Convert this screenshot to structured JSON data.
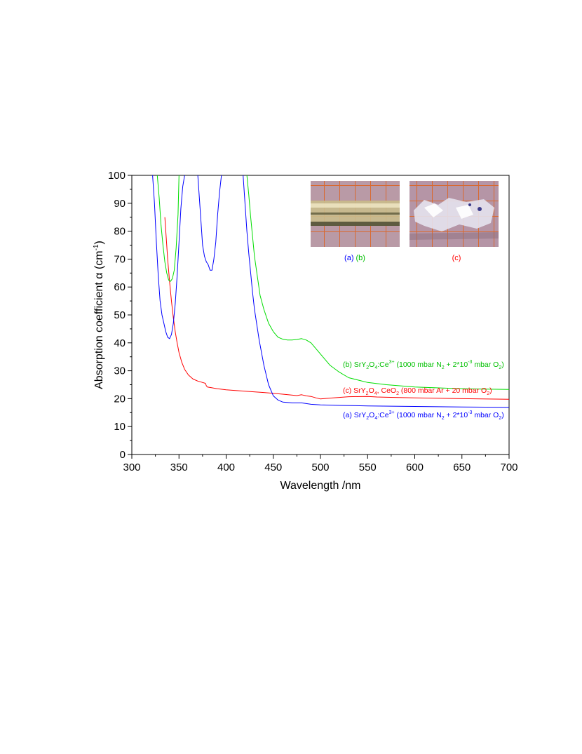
{
  "chart_data": {
    "type": "line",
    "xlabel": "Wavelength /nm",
    "ylabel_prefix": "Absorption coefficient ",
    "ylabel_symbol": "α",
    "ylabel_unit_open": " (cm",
    "ylabel_unit_exp": "-1",
    "ylabel_unit_close": ")",
    "xlim": [
      300,
      700
    ],
    "ylim": [
      0,
      100
    ],
    "xticks": [
      300,
      350,
      400,
      450,
      500,
      550,
      600,
      650,
      700
    ],
    "yticks": [
      0,
      10,
      20,
      30,
      40,
      50,
      60,
      70,
      80,
      90,
      100
    ],
    "grid": false,
    "series": [
      {
        "label": "a",
        "color": "#0000ff",
        "x": [
          322,
          324,
          326,
          328,
          330,
          332,
          334,
          336,
          338,
          340,
          342,
          344,
          346,
          348,
          350,
          352,
          354,
          356,
          370,
          373,
          375,
          377,
          379,
          381,
          383,
          385,
          387,
          389,
          391,
          393,
          395,
          418,
          420,
          422,
          424,
          426,
          428,
          430,
          435,
          440,
          445,
          450,
          455,
          460,
          470,
          480,
          490,
          500,
          520,
          550,
          600,
          650,
          700
        ],
        "y": [
          100,
          90,
          76,
          64,
          55,
          50,
          47,
          44,
          42,
          41.5,
          43,
          47,
          54,
          64,
          76,
          88,
          96,
          100,
          100,
          85,
          75,
          71,
          69,
          68,
          66,
          66,
          70,
          76,
          86,
          94,
          100,
          100,
          90,
          80,
          72,
          65,
          58,
          52,
          41,
          32,
          25,
          21,
          19.5,
          18.8,
          18.5,
          18.5,
          18,
          17.8,
          17.6,
          17.4,
          17.2,
          17,
          16.9
        ]
      },
      {
        "label": "b",
        "color": "#00dd00",
        "x": [
          327,
          329,
          331,
          333,
          335,
          337,
          339,
          341,
          343,
          345,
          347,
          349,
          350,
          422,
          424,
          426,
          428,
          430,
          433,
          436,
          440,
          445,
          450,
          455,
          460,
          465,
          470,
          475,
          480,
          485,
          490,
          495,
          500,
          510,
          520,
          530,
          550,
          570,
          600,
          630,
          660,
          700
        ],
        "y": [
          100,
          92,
          82,
          75,
          69,
          65,
          62.5,
          62,
          63,
          66,
          74,
          86,
          100,
          100,
          93,
          85,
          78,
          71,
          64,
          57,
          52,
          47,
          44,
          42,
          41.3,
          41,
          41,
          41.2,
          41.5,
          41,
          40,
          38,
          36,
          32,
          29.5,
          27.5,
          25.8,
          25,
          24.2,
          23.8,
          23.5,
          23.3
        ]
      },
      {
        "label": "c",
        "color": "#ff0000",
        "x": [
          335,
          338,
          340,
          342,
          344,
          346,
          348,
          350,
          353,
          356,
          360,
          365,
          370,
          375,
          378,
          379,
          380,
          385,
          390,
          400,
          420,
          440,
          460,
          475,
          480,
          485,
          490,
          495,
          500,
          510,
          530,
          550,
          560,
          570,
          600,
          650,
          700
        ],
        "y": [
          85,
          70,
          62,
          55,
          49,
          44,
          40,
          36.5,
          33,
          30.5,
          28.5,
          27,
          26.3,
          25.8,
          25.5,
          24.6,
          24.2,
          23.9,
          23.6,
          23.2,
          22.7,
          22.2,
          21.6,
          21.1,
          21.4,
          21,
          20.8,
          20.3,
          19.9,
          20.2,
          20.7,
          20.8,
          20.6,
          20.5,
          20.3,
          20,
          19.8
        ]
      }
    ],
    "annotations": {
      "a": {
        "prefix": "(a) SrY",
        "s1": "2",
        "m1": "O",
        "s2": "4",
        "m2": ":Ce",
        "sup": "3+",
        "m3": " (1000 mbar N",
        "s3": "2",
        "m4": " + 2*10",
        "sup2": "-3",
        "m5": " mbar O",
        "s4": "2",
        "end": ")"
      },
      "b": {
        "prefix": "(b) SrY",
        "s1": "2",
        "m1": "O",
        "s2": "4",
        "m2": ":Ce",
        "sup": "3+",
        "m3": " (1000 mbar N",
        "s3": "2",
        "m4": " + 2*10",
        "sup2": "-3",
        "m5": " mbar O",
        "s4": "2",
        "end": ")"
      },
      "c": {
        "prefix": "(c)  SrY",
        "s1": "2",
        "m1": "O",
        "s2": "4",
        "m2": ", CeO",
        "s3": "2",
        "m3": " (800 mbar Ar + 20  mbar O",
        "s4": "2",
        "end": ")"
      }
    },
    "inset_captions": {
      "left_a": "(a)",
      "left_b": "(b)",
      "right_c": "(c)"
    }
  }
}
